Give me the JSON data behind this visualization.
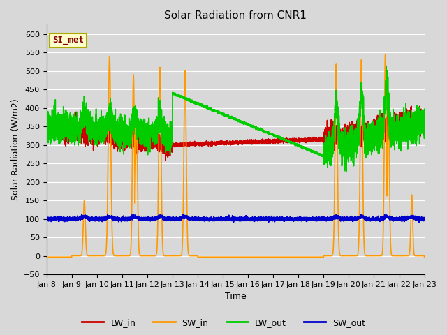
{
  "title": "Solar Radiation from CNR1",
  "xlabel": "Time",
  "ylabel": "Solar Radiation (W/m2)",
  "ylim": [
    -50,
    625
  ],
  "x_tick_labels": [
    "Jan 8",
    "Jan 9",
    "Jan 10",
    "Jan 11",
    "Jan 12",
    "Jan 13",
    "Jan 14",
    "Jan 15",
    "Jan 16",
    "Jan 17",
    "Jan 18",
    "Jan 19",
    "Jan 20",
    "Jan 21",
    "Jan 22",
    "Jan 23"
  ],
  "background_color": "#d8d8d8",
  "plot_bg_color": "#d8d8d8",
  "grid_color": "#ffffff",
  "legend_label": "SI_met",
  "legend_bg": "#ffffcc",
  "legend_border": "#aaaa00",
  "colors": {
    "LW_in": "#cc0000",
    "SW_in": "#ff9900",
    "LW_out": "#00cc00",
    "SW_out": "#0000cc"
  },
  "linewidth": 1.2
}
